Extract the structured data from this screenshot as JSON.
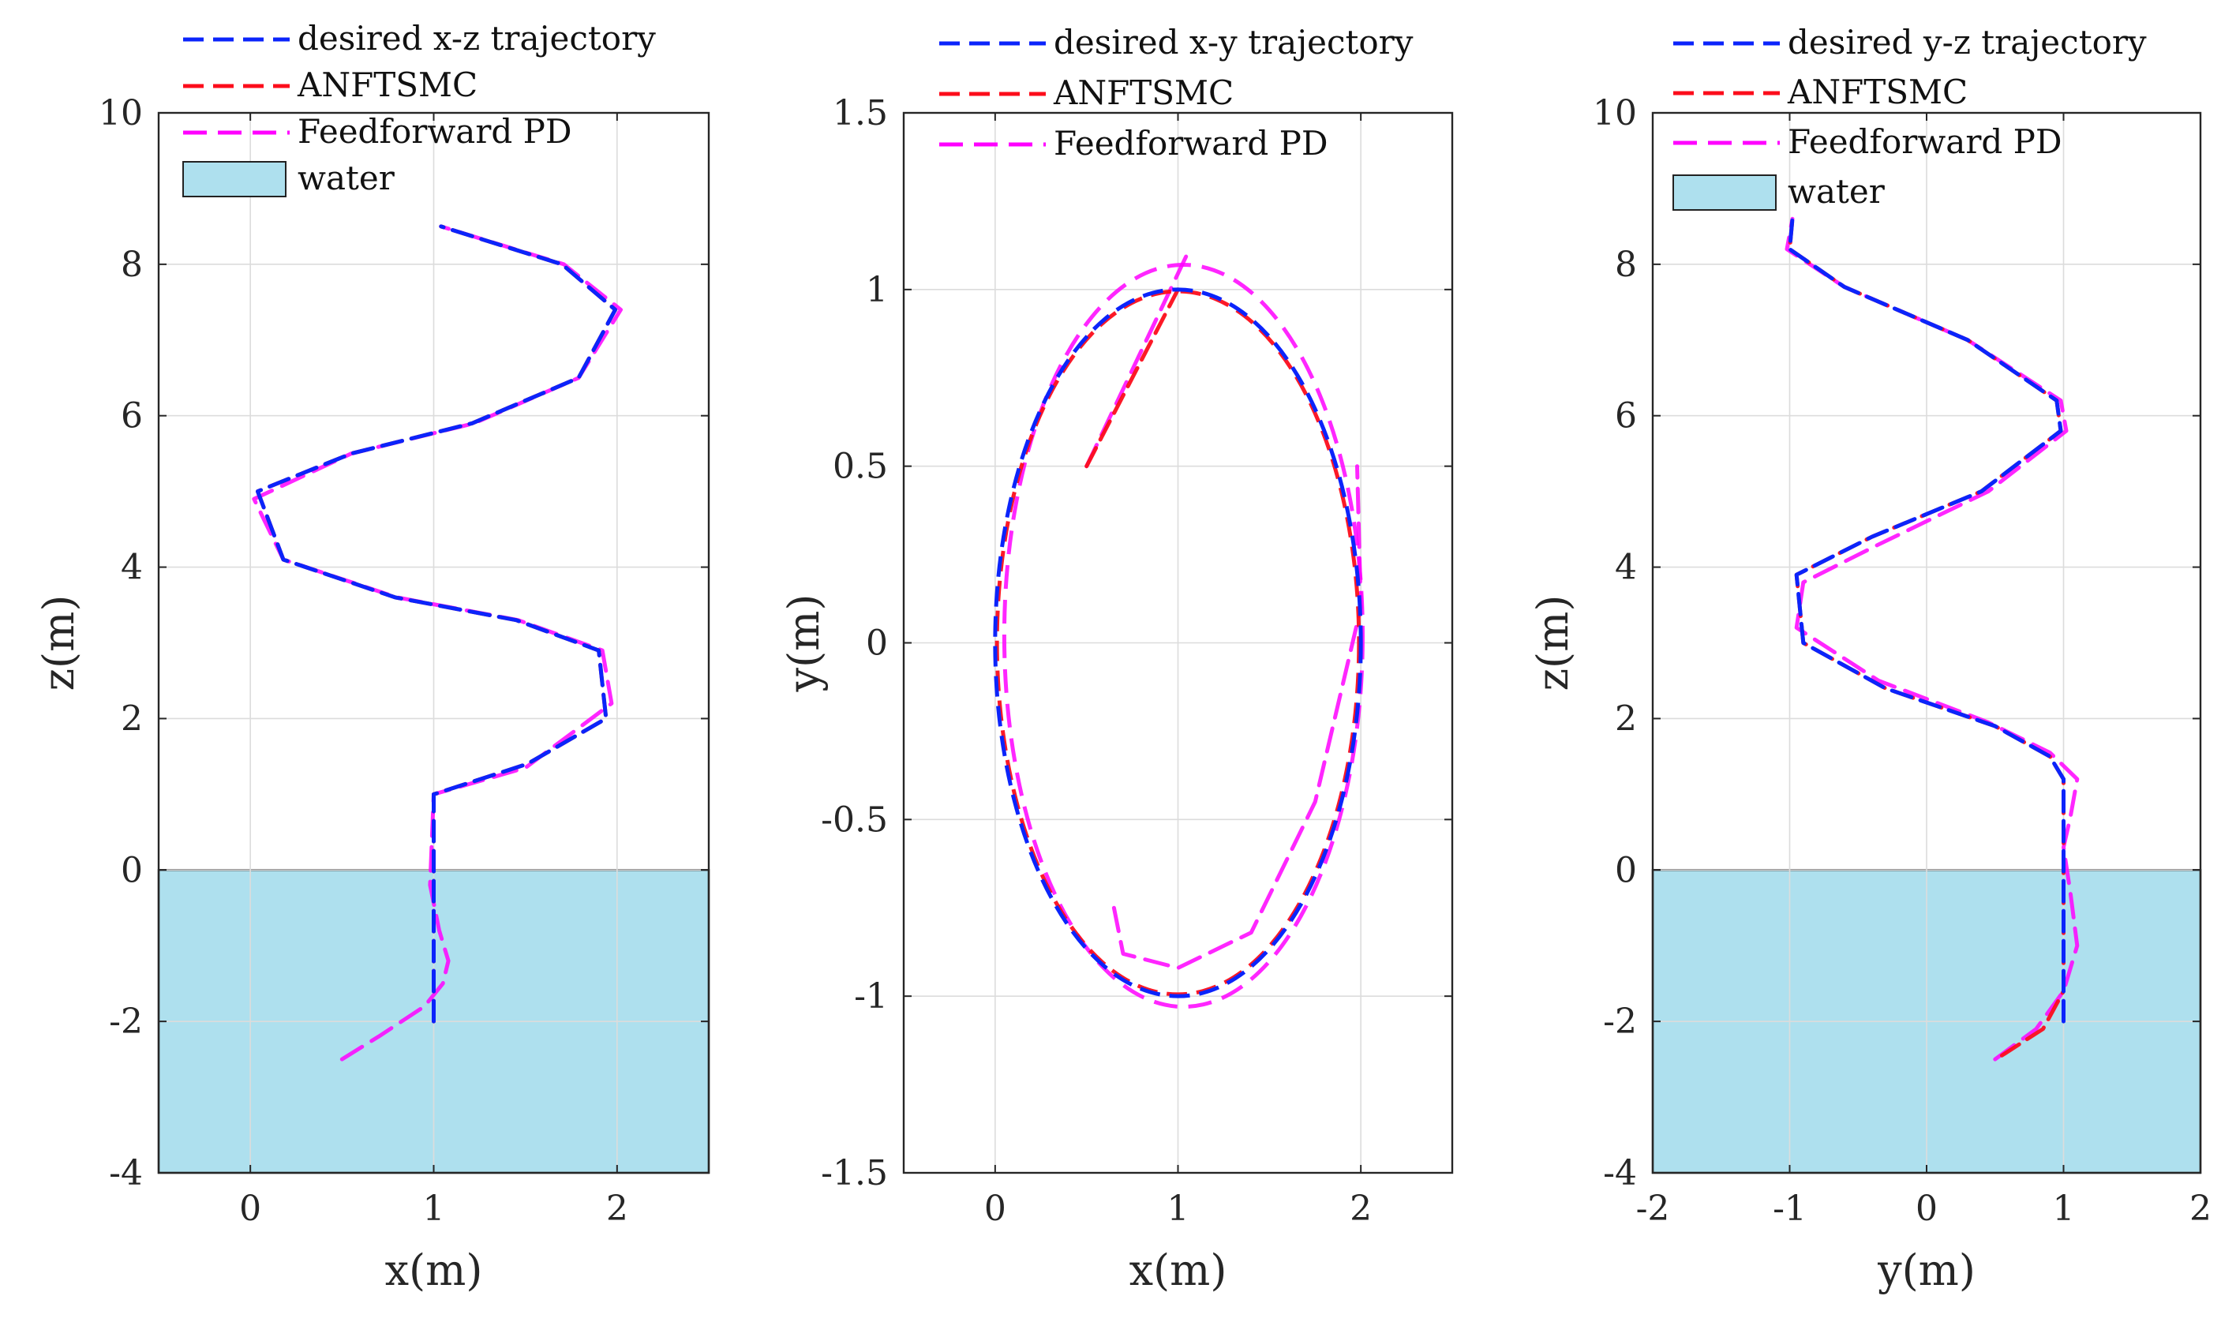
{
  "colors": {
    "desired": "#0b24fb",
    "anftsmc": "#fc0d1b",
    "feedforward": "#ff00ff",
    "water": "#aee0ee"
  },
  "chart_data": [
    {
      "type": "line",
      "xlabel": "x(m)",
      "ylabel": "z(m)",
      "xlim": [
        -0.5,
        2.5
      ],
      "ylim": [
        -4,
        10
      ],
      "xticks": [
        0,
        1,
        2
      ],
      "yticks": [
        -4,
        -2,
        0,
        2,
        4,
        6,
        8,
        10
      ],
      "xtick_labels": [
        "0",
        "1",
        "2"
      ],
      "ytick_labels": [
        "-4",
        "-2",
        "0",
        "2",
        "4",
        "6",
        "8",
        "10"
      ],
      "grid": true,
      "legend_location": "top (above axes)",
      "water": {
        "label": "water",
        "z_top": 0,
        "z_bottom": -4
      },
      "series": [
        {
          "name": "desired x-z trajectory",
          "key": "desired",
          "x": [
            1,
            1,
            1,
            1.51,
            1.94,
            1.9,
            1.45,
            0.79,
            0.18,
            0.04,
            0.55,
            1.21,
            1.79,
            1.99,
            1.7,
            1.04
          ],
          "y": [
            -2,
            0,
            1,
            1.4,
            2.0,
            2.9,
            3.3,
            3.6,
            4.1,
            5.0,
            5.5,
            5.9,
            6.5,
            7.4,
            8.0,
            8.5
          ]
        },
        {
          "name": "ANFTSMC",
          "key": "anftsmc",
          "x": [
            1,
            1,
            1,
            1.51,
            1.94,
            1.9,
            1.45,
            0.79,
            0.18,
            0.04,
            0.55,
            1.21,
            1.79,
            1.99,
            1.7,
            1.04
          ],
          "y": [
            -2,
            0,
            1,
            1.4,
            2.0,
            2.9,
            3.3,
            3.6,
            4.1,
            5.0,
            5.5,
            5.9,
            6.5,
            7.4,
            8.0,
            8.5
          ]
        },
        {
          "name": "Feedforward PD",
          "key": "feedforward",
          "x": [
            0.5,
            0.7,
            0.95,
            1.05,
            1.08,
            1.03,
            0.98,
            1.0,
            1.5,
            1.97,
            1.92,
            1.46,
            0.8,
            0.18,
            0.02,
            0.55,
            1.22,
            1.79,
            2.02,
            1.71,
            1.04
          ],
          "y": [
            -2.5,
            -2.2,
            -1.8,
            -1.5,
            -1.2,
            -0.8,
            -0.2,
            1.0,
            1.35,
            2.2,
            2.9,
            3.3,
            3.6,
            4.1,
            4.9,
            5.5,
            5.9,
            6.5,
            7.4,
            8.0,
            8.5
          ]
        }
      ]
    },
    {
      "type": "line",
      "xlabel": "x(m)",
      "ylabel": "y(m)",
      "xlim": [
        -0.5,
        2.5
      ],
      "ylim": [
        -1.5,
        1.5
      ],
      "xticks": [
        0,
        1,
        2
      ],
      "yticks": [
        -1.5,
        -1,
        -0.5,
        0,
        0.5,
        1,
        1.5
      ],
      "xtick_labels": [
        "0",
        "1",
        "2"
      ],
      "ytick_labels": [
        "-1.5",
        "-1",
        "-0.5",
        "0",
        "0.5",
        "1",
        "1.5"
      ],
      "grid": true,
      "legend_location": "top-left (inside axes)",
      "series": [
        {
          "name": "desired x-y trajectory",
          "key": "desired",
          "shape": "ellipse",
          "center": [
            1,
            0
          ],
          "radius": [
            1,
            1
          ]
        },
        {
          "name": "ANFTSMC",
          "key": "anftsmc",
          "shape": "ellipse",
          "center": [
            1,
            0
          ],
          "radius": [
            0.99,
            0.995
          ],
          "start_x": [
            0.5,
            1.0
          ],
          "start_y": [
            0.5,
            1.0
          ]
        },
        {
          "name": "Feedforward PD",
          "key": "feedforward",
          "shape": "ellipse",
          "center": [
            1.03,
            0.02
          ],
          "radius": [
            0.98,
            1.05
          ],
          "start_x": [
            0.5,
            1.05
          ],
          "start_y": [
            0.5,
            1.1
          ],
          "inner_x": [
            0.65,
            0.7,
            1.0,
            1.4,
            1.75,
            2.0,
            1.98
          ],
          "inner_y": [
            -0.75,
            -0.88,
            -0.92,
            -0.82,
            -0.45,
            0.1,
            0.5
          ]
        }
      ]
    },
    {
      "type": "line",
      "xlabel": "y(m)",
      "ylabel": "z(m)",
      "xlim": [
        -2,
        2
      ],
      "ylim": [
        -4,
        10
      ],
      "xticks": [
        -2,
        -1,
        0,
        1,
        2
      ],
      "yticks": [
        -4,
        -2,
        0,
        2,
        4,
        6,
        8,
        10
      ],
      "xtick_labels": [
        "-2",
        "-1",
        "0",
        "1",
        "2"
      ],
      "ytick_labels": [
        "-4",
        "-2",
        "0",
        "2",
        "4",
        "6",
        "8",
        "10"
      ],
      "grid": true,
      "legend_location": "top (above axes)",
      "water": {
        "label": "water",
        "z_top": 0,
        "z_bottom": -4
      },
      "series": [
        {
          "name": "desired y-z trajectory",
          "key": "desired",
          "x": [
            1,
            1,
            1,
            0.9,
            0.5,
            -0.3,
            -0.9,
            -0.95,
            -0.4,
            0.4,
            0.98,
            0.95,
            0.3,
            -0.6,
            -1.0,
            -0.98
          ],
          "y": [
            -2,
            0,
            1.2,
            1.5,
            1.9,
            2.4,
            3.0,
            3.9,
            4.4,
            5.0,
            5.8,
            6.2,
            7.0,
            7.7,
            8.2,
            8.6
          ]
        },
        {
          "name": "ANFTSMC",
          "key": "anftsmc",
          "x": [
            0.55,
            0.85,
            1.0,
            1.0,
            1.0,
            0.9,
            0.5,
            -0.3,
            -0.9,
            -0.95,
            -0.4,
            0.4,
            0.98,
            0.95,
            0.3,
            -0.6,
            -1.0,
            -0.98
          ],
          "y": [
            -2.45,
            -2.1,
            -1.6,
            0,
            1.2,
            1.5,
            1.9,
            2.4,
            3.0,
            3.9,
            4.4,
            5.0,
            5.8,
            6.2,
            7.0,
            7.7,
            8.2,
            8.6
          ]
        },
        {
          "name": "Feedforward PD",
          "key": "feedforward",
          "x": [
            0.5,
            0.8,
            1.0,
            1.1,
            1.05,
            1.0,
            1.05,
            1.1,
            0.9,
            0.45,
            -0.35,
            -0.95,
            -0.9,
            -0.35,
            0.45,
            1.02,
            0.98,
            0.3,
            -0.6,
            -1.02,
            -0.98
          ],
          "y": [
            -2.5,
            -2.1,
            -1.6,
            -1.0,
            -0.3,
            0.3,
            0.7,
            1.2,
            1.55,
            1.95,
            2.5,
            3.2,
            3.8,
            4.3,
            5.0,
            5.8,
            6.2,
            7.0,
            7.7,
            8.2,
            8.6
          ]
        }
      ]
    }
  ]
}
